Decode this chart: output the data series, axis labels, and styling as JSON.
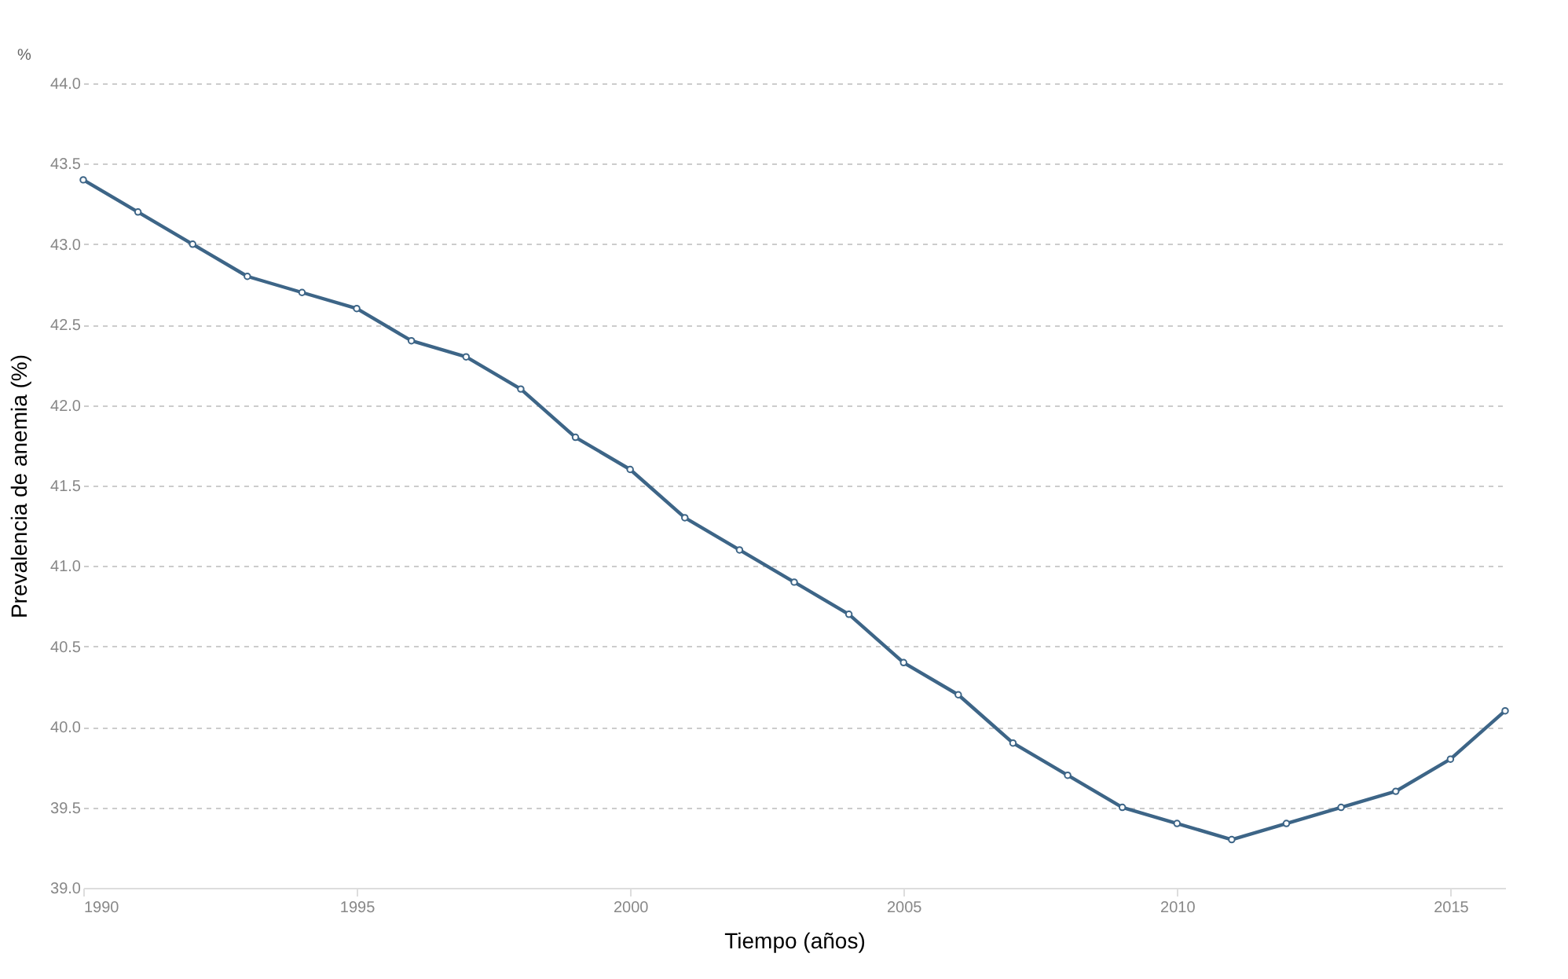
{
  "chart_data": {
    "type": "line",
    "xlabel": "Tiempo (años)",
    "ylabel": "Prevalencia de anemia (%)",
    "annotations": [
      "%"
    ],
    "x": [
      1990,
      1991,
      1992,
      1993,
      1994,
      1995,
      1996,
      1997,
      1998,
      1999,
      2000,
      2001,
      2002,
      2003,
      2004,
      2005,
      2006,
      2007,
      2008,
      2009,
      2010,
      2011,
      2012,
      2013,
      2014,
      2015,
      2016
    ],
    "series": [
      {
        "color": "#3d6587",
        "values": [
          43.4,
          43.2,
          43.0,
          42.8,
          42.7,
          42.6,
          42.4,
          42.3,
          42.1,
          41.8,
          41.6,
          41.3,
          41.1,
          40.9,
          40.7,
          40.4,
          40.2,
          39.9,
          39.7,
          39.5,
          39.4,
          39.3,
          39.4,
          39.5,
          39.6,
          39.8,
          40.1
        ]
      }
    ],
    "xlim": [
      1990,
      2016
    ],
    "xticks": [
      1990,
      1995,
      2000,
      2005,
      2010,
      2015
    ],
    "ylim": [
      39.0,
      44.0
    ],
    "yticks": [
      {
        "value": 39.0,
        "label": "39.0"
      },
      {
        "value": 39.5,
        "label": "39.5"
      },
      {
        "value": 40.0,
        "label": "40.0"
      },
      {
        "value": 40.5,
        "label": "40.5"
      },
      {
        "value": 41.0,
        "label": "41.0"
      },
      {
        "value": 41.5,
        "label": "41.5"
      },
      {
        "value": 42.0,
        "label": "42.0"
      },
      {
        "value": 42.5,
        "label": "42.5"
      },
      {
        "value": 43.0,
        "label": "43.0"
      },
      {
        "value": 43.5,
        "label": "43.5"
      },
      {
        "value": 44.0,
        "label": "44.0"
      }
    ],
    "grid": "y",
    "marker": "circle",
    "line_style": "solid"
  }
}
